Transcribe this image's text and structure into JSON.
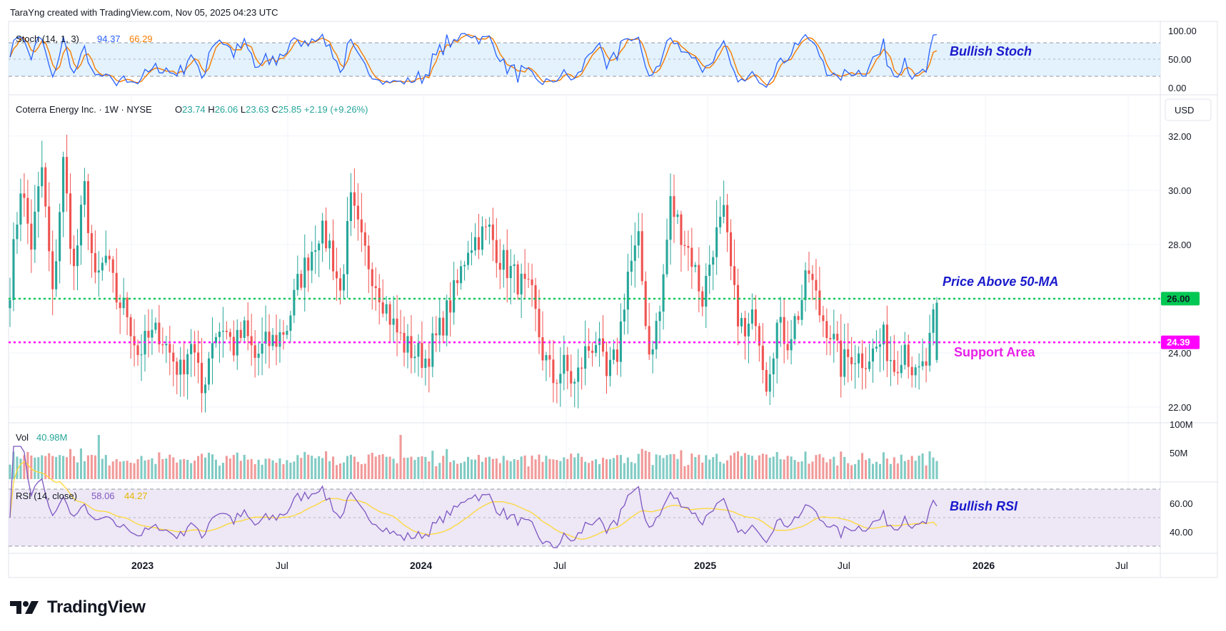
{
  "header": {
    "attribution": "TaraYng created with TradingView.com, Nov 05, 2025 04:23 UTC"
  },
  "brand": {
    "name": "TradingView"
  },
  "colors": {
    "up": "#26a69a",
    "down": "#ef5350",
    "stoch_k": "#2962ff",
    "stoch_d": "#f57c00",
    "rsi": "#7e57c2",
    "rsi_ma": "#fdd835",
    "green_line": "#00c853",
    "magenta_line": "#ff00ff",
    "annotation_blue": "#1a1acc",
    "annotation_magenta": "#e91ee9"
  },
  "stoch": {
    "title": "Stoch (14, 1, 3)",
    "k_value": "94.37",
    "d_value": "66.29",
    "ticks": [
      "100.00",
      "50.00",
      "0.00"
    ],
    "annotation": "Bullish Stoch"
  },
  "price": {
    "title": "Coterra Energy Inc. · 1W · NYSE",
    "o_label": "O",
    "o": "23.74",
    "h_label": "H",
    "h": "26.06",
    "l_label": "L",
    "l": "23.63",
    "c_label": "C",
    "c": "25.85",
    "change": "+2.19 (+9.26%)",
    "currency": "USD",
    "ticks": [
      "32.00",
      "30.00",
      "28.00",
      "26.00",
      "24.00",
      "22.00"
    ],
    "line_26": "26.00",
    "line_24": "24.39",
    "annotation_ma": "Price Above 50-MA",
    "annotation_support": "Support Area"
  },
  "volume": {
    "title": "Vol",
    "value": "40.98M",
    "ticks": [
      "100M",
      "50M"
    ]
  },
  "rsi": {
    "title": "RSI (14, close)",
    "value": "58.06",
    "ma_value": "44.27",
    "ticks": [
      "60.00",
      "40.00"
    ],
    "annotation": "Bullish RSI"
  },
  "time_axis": [
    "2023",
    "Jul",
    "2024",
    "Jul",
    "2025",
    "Jul",
    "2026",
    "Jul"
  ],
  "chart_data": {
    "type": "candlestick",
    "interval": "1W",
    "symbol": "CTRA",
    "ylim": [
      21.5,
      32.6
    ],
    "horizontal_lines": [
      {
        "value": 26.0,
        "label": "26.00",
        "role": "Price Above 50-MA"
      },
      {
        "value": 24.39,
        "label": "24.39",
        "role": "Support Area"
      }
    ],
    "anchors": [
      26.5,
      30.2,
      28.0,
      30.8,
      26.0,
      31.0,
      27.0,
      30.0,
      26.5,
      27.5,
      26.0,
      25.5,
      24.0,
      24.5,
      24.8,
      24.0,
      23.3,
      24.5,
      22.5,
      24.6,
      25.0,
      24.2,
      24.8,
      23.8,
      24.3,
      24.5,
      25.0,
      26.5,
      27.5,
      28.5,
      28.0,
      26.2,
      29.5,
      28.0,
      27.0,
      26.0,
      25.0,
      24.3,
      24.0,
      23.8,
      24.5,
      25.5,
      26.5,
      28.0,
      28.3,
      28.5,
      27.5,
      27.0,
      26.5,
      26.0,
      24.0,
      23.0,
      23.5,
      22.8,
      24.0,
      24.5,
      23.0,
      24.0,
      27.0,
      28.0,
      24.0,
      25.5,
      29.5,
      28.5,
      27.5,
      26.0,
      28.0,
      29.0,
      26.0,
      24.5,
      25.5,
      23.0,
      25.0,
      24.5,
      25.5,
      27.0,
      25.5,
      24.8,
      23.5,
      24.0,
      23.8,
      24.0,
      24.5,
      23.5,
      24.4,
      23.0,
      23.6,
      25.85
    ],
    "last_candle": {
      "o": 23.74,
      "h": 26.06,
      "l": 23.63,
      "c": 25.85
    },
    "volume_last": "40.98M",
    "stoch_last": {
      "k": 94.37,
      "d": 66.29
    },
    "rsi_last": {
      "rsi": 58.06,
      "ma": 44.27
    }
  }
}
